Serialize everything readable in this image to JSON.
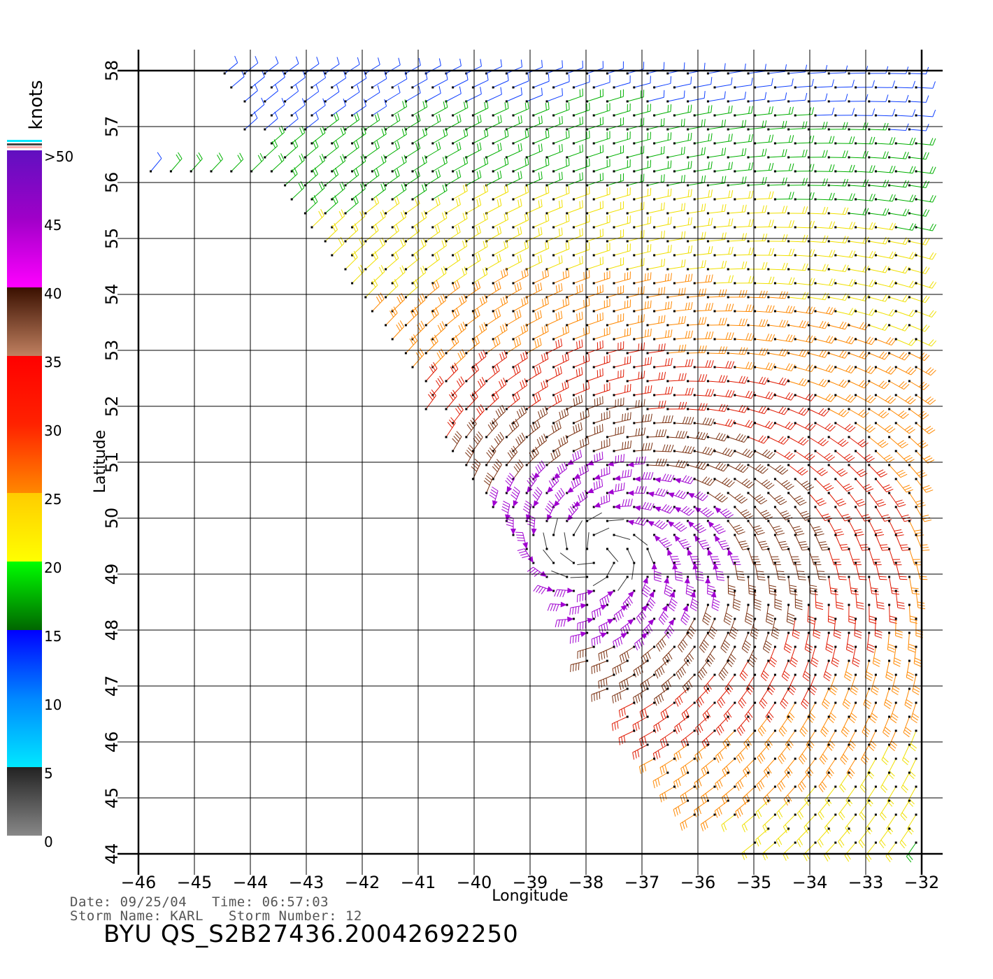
{
  "chart_data": {
    "type": "wind-barb-map",
    "xlabel": "Longitude",
    "ylabel": "Latitude",
    "xlim": [
      -46,
      -32
    ],
    "ylim": [
      44,
      58
    ],
    "x_ticks": [
      "−46",
      "−45",
      "−44",
      "−43",
      "−42",
      "−41",
      "−40",
      "−39",
      "−38",
      "−37",
      "−36",
      "−35",
      "−34",
      "−33",
      "−32"
    ],
    "y_ticks": [
      "44",
      "45",
      "46",
      "47",
      "48",
      "49",
      "50",
      "51",
      "52",
      "53",
      "54",
      "55",
      "56",
      "57",
      "58"
    ],
    "grid": true,
    "storm_center": {
      "lon": -37.8,
      "lat": 49.4
    },
    "colorbar": {
      "title": "knots",
      "tick_labels": [
        ">50",
        "45",
        "40",
        "35",
        "30",
        "25",
        "20",
        "15",
        "10",
        "5",
        "0"
      ],
      "stops": [
        {
          "value": 0,
          "color": "#888888"
        },
        {
          "value": 5,
          "color": "#222222"
        },
        {
          "value": 5,
          "color": "#00e8ff"
        },
        {
          "value": 10,
          "color": "#0088ff"
        },
        {
          "value": 15,
          "color": "#0000ff"
        },
        {
          "value": 15,
          "color": "#006600"
        },
        {
          "value": 20,
          "color": "#00ff00"
        },
        {
          "value": 20,
          "color": "#ffff00"
        },
        {
          "value": 25,
          "color": "#ffcc00"
        },
        {
          "value": 25,
          "color": "#ff8800"
        },
        {
          "value": 30,
          "color": "#ff2200"
        },
        {
          "value": 35,
          "color": "#ff0000"
        },
        {
          "value": 35,
          "color": "#c08060"
        },
        {
          "value": 40,
          "color": "#3a1000"
        },
        {
          "value": 40,
          "color": "#ff00ff"
        },
        {
          "value": 45,
          "color": "#a000c8"
        },
        {
          "value": 50,
          "color": "#6010c0"
        }
      ]
    }
  },
  "info": {
    "line1": "Date: 09/25/04   Time: 06:57:03",
    "line2": "Storm Name: KARL   Storm Number: 12",
    "id": "BYU  QS_S2B27436.20042692250"
  }
}
